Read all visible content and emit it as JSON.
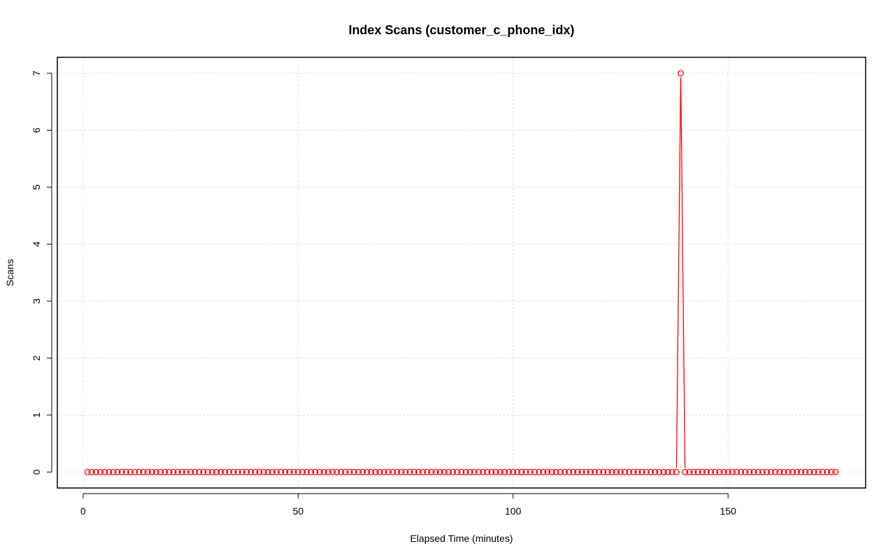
{
  "chart_data": {
    "type": "line",
    "title": "Index Scans (customer_c_phone_idx)",
    "xlabel": "Elapsed Time (minutes)",
    "ylabel": "Scans",
    "xlim": [
      -6,
      182
    ],
    "ylim": [
      -0.28,
      7.28
    ],
    "xticks": [
      0,
      50,
      100,
      150
    ],
    "yticks": [
      0,
      1,
      2,
      3,
      4,
      5,
      6,
      7
    ],
    "grid": true,
    "x_start": 1,
    "x_end": 175,
    "baseline_value": 0,
    "spike": {
      "x": 139,
      "y": 7
    },
    "colors": {
      "series": "#ff0000",
      "grid": "#c8c8c8",
      "axis": "#000000"
    }
  }
}
